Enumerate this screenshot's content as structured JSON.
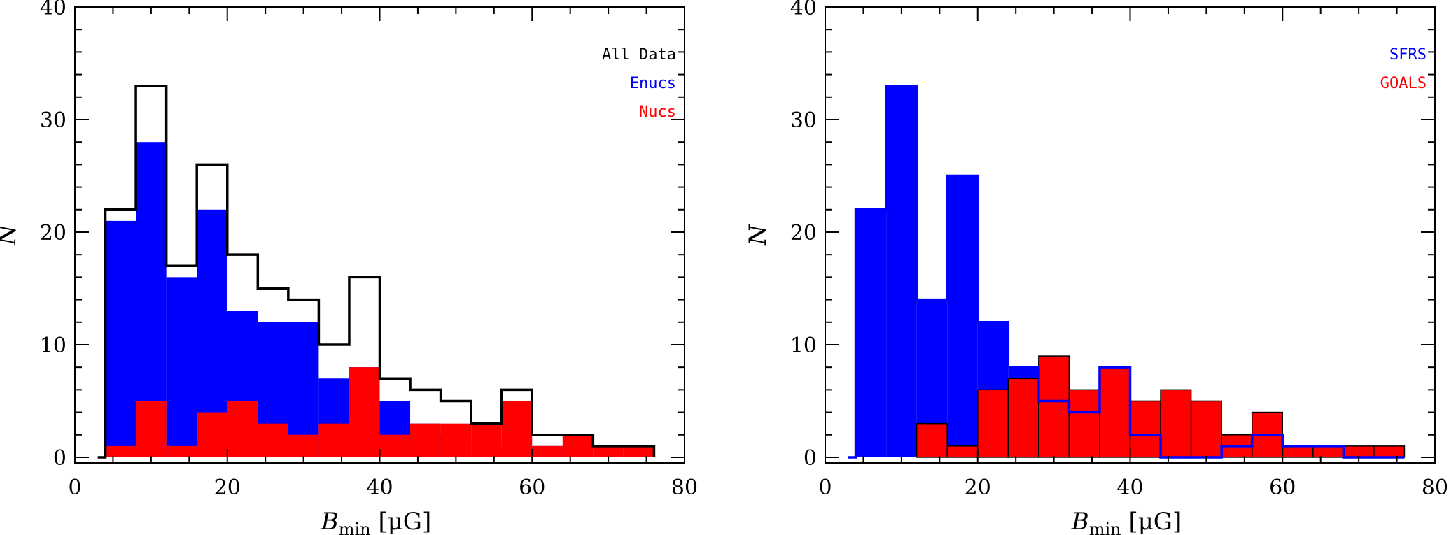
{
  "chart_data": [
    {
      "type": "bar",
      "xlabel": "B_min [μG]",
      "xlabel_parts": {
        "main": "B",
        "sub": "min",
        "unit": "[μG]"
      },
      "ylabel": "N",
      "xlim": [
        0,
        80
      ],
      "ylim": [
        -0.5,
        40
      ],
      "xticks": [
        0,
        20,
        40,
        60,
        80
      ],
      "yticks": [
        0,
        10,
        20,
        30,
        40
      ],
      "grid": false,
      "legend_position": "top-right",
      "bin_edges": [
        4,
        8,
        12,
        16,
        20,
        24,
        28,
        32,
        36,
        40,
        44,
        48,
        52,
        56,
        60,
        64,
        68,
        72,
        76
      ],
      "series": [
        {
          "name": "All Data",
          "color": "#000000",
          "style": "step-outline",
          "values": [
            22,
            33,
            17,
            26,
            18,
            15,
            14,
            10,
            16,
            7,
            6,
            5,
            3,
            6,
            2,
            2,
            1,
            1
          ]
        },
        {
          "name": "Enucs",
          "color": "#0000ff",
          "style": "filled",
          "values": [
            21,
            28,
            16,
            22,
            13,
            12,
            12,
            7,
            8,
            5,
            3,
            2,
            0,
            1,
            1,
            0,
            0,
            0
          ]
        },
        {
          "name": "Nucs",
          "color": "#ff0000",
          "style": "filled",
          "values": [
            1,
            5,
            1,
            4,
            5,
            3,
            2,
            3,
            8,
            2,
            3,
            3,
            3,
            5,
            1,
            2,
            1,
            1
          ]
        }
      ],
      "draw_order": [
        "Enucs",
        "Nucs",
        "All Data"
      ]
    },
    {
      "type": "bar",
      "xlabel": "B_min [μG]",
      "xlabel_parts": {
        "main": "B",
        "sub": "min",
        "unit": "[μG]"
      },
      "ylabel": "N",
      "xlim": [
        0,
        80
      ],
      "ylim": [
        -0.5,
        40
      ],
      "xticks": [
        0,
        20,
        40,
        60,
        80
      ],
      "yticks": [
        0,
        10,
        20,
        30,
        40
      ],
      "grid": false,
      "legend_position": "top-right",
      "bin_edges": [
        4,
        8,
        12,
        16,
        20,
        24,
        28,
        32,
        36,
        40,
        44,
        48,
        52,
        56,
        60,
        64,
        68,
        72,
        76
      ],
      "series": [
        {
          "name": "SFRS",
          "color": "#0000ff",
          "style": "filled-then-outline",
          "values": [
            22,
            33,
            14,
            25,
            12,
            8,
            5,
            4,
            8,
            2,
            0,
            0,
            1,
            2,
            1,
            1,
            0,
            0
          ]
        },
        {
          "name": "GOALS",
          "color": "#ff0000",
          "style": "filled-black-edge",
          "values": [
            0,
            0,
            3,
            1,
            6,
            7,
            9,
            6,
            8,
            5,
            6,
            5,
            2,
            4,
            1,
            1,
            1,
            1
          ]
        }
      ],
      "draw_order": [
        "SFRS",
        "GOALS",
        "SFRS-outline"
      ]
    }
  ]
}
